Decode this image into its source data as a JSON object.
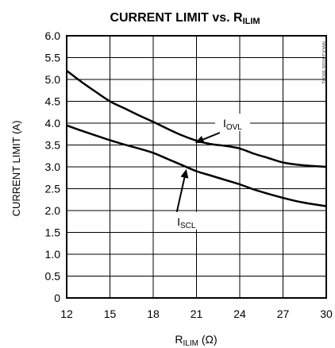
{
  "chart_data": {
    "type": "line",
    "title_main": "CURRENT LIMIT vs. R",
    "title_sub": "ILIM",
    "xlabel_main": "R",
    "xlabel_sub": "ILIM",
    "xlabel_unit": " (Ω)",
    "ylabel": "CURRENT LIMIT (A)",
    "xlim": [
      12,
      30
    ],
    "ylim": [
      0,
      6
    ],
    "xticks": [
      "12",
      "15",
      "18",
      "21",
      "24",
      "27",
      "30"
    ],
    "yticks": [
      "0",
      "0.5",
      "1.0",
      "1.5",
      "2.0",
      "2.5",
      "3.0",
      "3.5",
      "4.0",
      "4.5",
      "5.0",
      "5.5",
      "6.0"
    ],
    "grid": true,
    "watermark": "MAX14656 toc01",
    "series": [
      {
        "name_main": "I",
        "name_sub": "OVL",
        "x": [
          12,
          13,
          14,
          15,
          16,
          17,
          18,
          19,
          20,
          21,
          22,
          23,
          24,
          25,
          26,
          27,
          28,
          29,
          30
        ],
        "values": [
          5.2,
          4.95,
          4.72,
          4.5,
          4.34,
          4.18,
          4.03,
          3.87,
          3.72,
          3.6,
          3.52,
          3.48,
          3.42,
          3.3,
          3.2,
          3.1,
          3.05,
          3.02,
          3.0
        ]
      },
      {
        "name_main": "I",
        "name_sub": "SCL",
        "x": [
          12,
          13,
          14,
          15,
          16,
          17,
          18,
          19,
          20,
          21,
          22,
          23,
          24,
          25,
          26,
          27,
          28,
          29,
          30
        ],
        "values": [
          3.95,
          3.83,
          3.72,
          3.61,
          3.51,
          3.42,
          3.32,
          3.18,
          3.04,
          2.9,
          2.8,
          2.7,
          2.6,
          2.48,
          2.38,
          2.29,
          2.21,
          2.15,
          2.1
        ]
      }
    ],
    "annotations": [
      {
        "series": 0,
        "label_x": 23.5,
        "label_y": 4.0,
        "arrow_to": [
          20.9,
          3.55
        ]
      },
      {
        "series": 1,
        "label_x": 20.3,
        "label_y": 1.75,
        "arrow_to": [
          20.3,
          2.95
        ]
      }
    ]
  }
}
